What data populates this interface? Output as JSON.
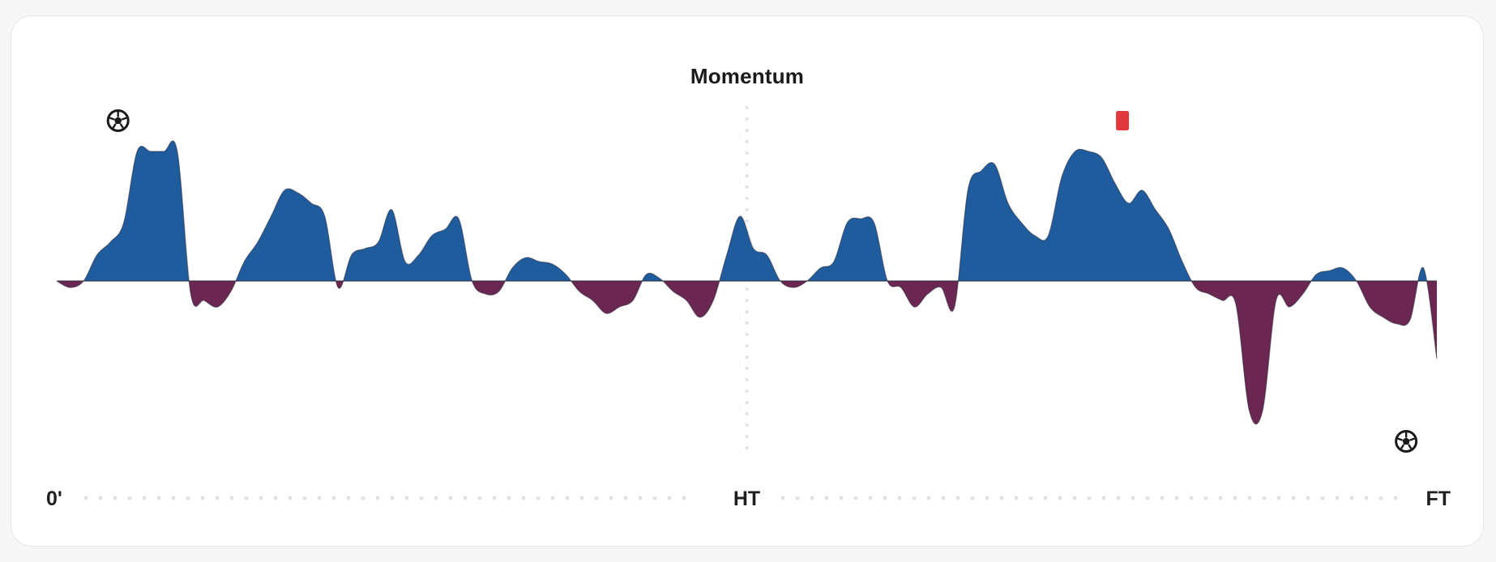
{
  "card": {
    "title": "Momentum"
  },
  "colors": {
    "home": "#1f5c9e",
    "away": "#6b2752",
    "red_card": "#e0393e",
    "divider": "#e2e2e2",
    "background": "#ffffff"
  },
  "axis": {
    "start_label": "0'",
    "half_label": "HT",
    "end_label": "FT"
  },
  "chart_data": {
    "type": "area",
    "title": "Momentum",
    "xlabel": "",
    "ylabel": "",
    "xlim": [
      0,
      90
    ],
    "ylim": [
      -100,
      100
    ],
    "x_ticks": [
      "0'",
      "HT",
      "FT"
    ],
    "half_time_minute": 45,
    "grid": false,
    "series": [
      {
        "values": [
          0,
          -5,
          0,
          20,
          30,
          45,
          100,
          100,
          100,
          100,
          -10,
          -15,
          -20,
          -8,
          15,
          30,
          50,
          70,
          68,
          60,
          50,
          -5,
          20,
          25,
          30,
          55,
          15,
          20,
          35,
          40,
          48,
          0,
          -10,
          -8,
          10,
          18,
          15,
          13,
          5,
          -8,
          -15,
          -25,
          -20,
          -15,
          5,
          2,
          -8,
          -15,
          -28,
          -15,
          20,
          50,
          25,
          20,
          0,
          -5,
          0,
          10,
          15,
          45,
          48,
          45,
          0,
          -5,
          -20,
          -10,
          -5,
          -20,
          70,
          85,
          90,
          60,
          45,
          35,
          35,
          80,
          100,
          100,
          95,
          75,
          60,
          70,
          55,
          40,
          15,
          -5,
          -10,
          -15,
          -18,
          -100,
          -100,
          -15,
          -20,
          -10,
          5,
          8,
          10,
          0,
          -20,
          -28,
          -33,
          -30,
          10,
          -60
        ]
      }
    ],
    "events": [
      {
        "type": "goal",
        "team": "home",
        "icon": "soccer-ball-icon",
        "minute": 4
      },
      {
        "type": "red_card",
        "team": "home",
        "icon": "red-card-icon",
        "minute": 69.5
      },
      {
        "type": "goal",
        "team": "away",
        "icon": "soccer-ball-icon",
        "minute": 88
      }
    ]
  }
}
